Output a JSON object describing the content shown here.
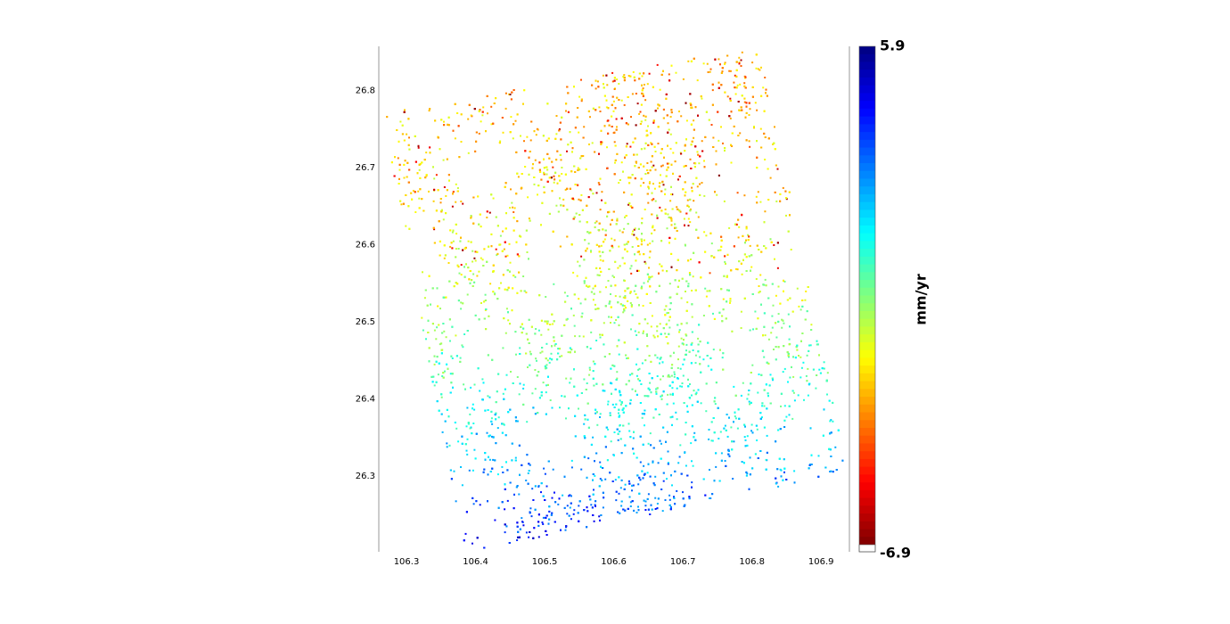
{
  "chart_data": {
    "type": "scatter",
    "colormap": "jet_r",
    "xlim": [
      106.26,
      106.941
    ],
    "xticks": [
      106.3,
      106.4,
      106.5,
      106.6,
      106.7,
      106.8,
      106.9
    ],
    "ylim": [
      26.202,
      26.857
    ],
    "yticks": [
      26.3,
      26.4,
      26.5,
      26.6,
      26.7,
      26.8
    ],
    "clim": [
      -6.9,
      5.9
    ],
    "cticks": [
      -6.9,
      5.9
    ],
    "colorbar_label": "mm/yr"
  }
}
